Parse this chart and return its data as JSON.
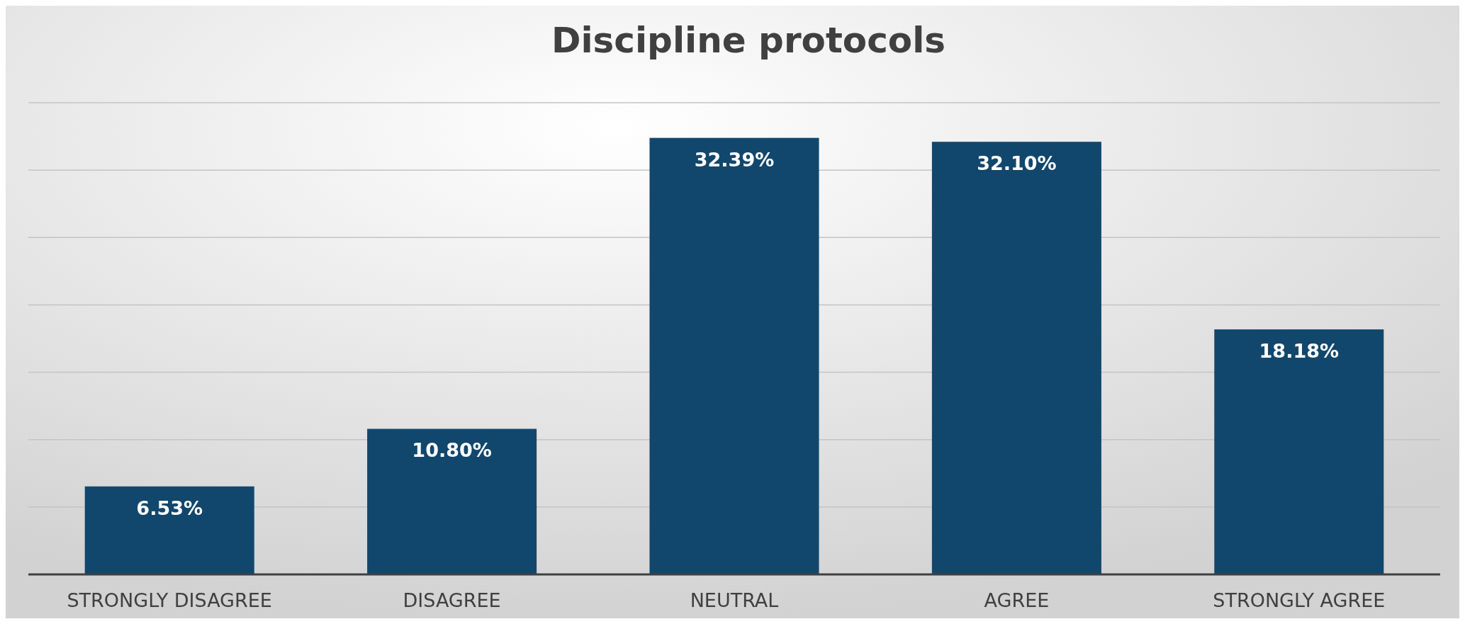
{
  "chart_data": {
    "type": "bar",
    "title": "Discipline protocols",
    "categories": [
      "STRONGLY DISAGREE",
      "DISAGREE",
      "NEUTRAL",
      "AGREE",
      "STRONGLY AGREE"
    ],
    "values": [
      6.53,
      10.8,
      32.39,
      32.1,
      18.18
    ],
    "value_labels": [
      "6.53%",
      "10.80%",
      "32.39%",
      "32.10%",
      "18.18%"
    ],
    "color": "#12476d",
    "ylim": [
      0,
      35
    ],
    "yticks": [
      {
        "value": 0,
        "label": null
      },
      {
        "value": 5,
        "label": null
      },
      {
        "value": 10,
        "label": null
      },
      {
        "value": 15,
        "label": null
      },
      {
        "value": 20,
        "label": null
      },
      {
        "value": 25,
        "label": null
      },
      {
        "value": 30,
        "label": null
      },
      {
        "value": 35,
        "label": null
      }
    ],
    "grid": true,
    "tick_labels": "x"
  }
}
